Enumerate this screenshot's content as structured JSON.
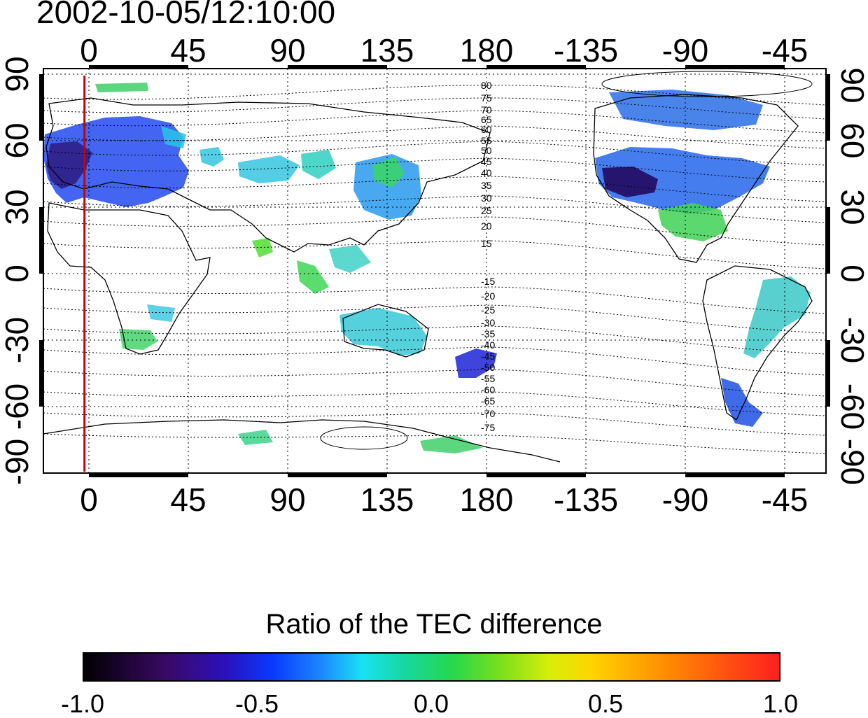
{
  "timestamp": "2002-10-05/12:10:00",
  "map": {
    "top_axis_labels": [
      "0",
      "45",
      "90",
      "135",
      "180",
      "-135",
      "-90",
      "-45"
    ],
    "bottom_axis_labels": [
      "0",
      "45",
      "90",
      "135",
      "180",
      "-135",
      "-90",
      "-45"
    ],
    "left_axis_labels": [
      "90",
      "60",
      "30",
      "0",
      "-30",
      "-60",
      "-90"
    ],
    "right_axis_labels": [
      "90",
      "60",
      "30",
      "0",
      "-30",
      "-60",
      "-90"
    ],
    "north_contour_labels": [
      "80",
      "75",
      "70",
      "65",
      "60",
      "55",
      "50",
      "45",
      "40",
      "35",
      "30",
      "25",
      "20",
      "15"
    ],
    "south_contour_labels": [
      "-15",
      "-20",
      "-25",
      "-30",
      "-35",
      "-40",
      "-45",
      "-50",
      "-55",
      "-60",
      "-65",
      "-70",
      "-75"
    ],
    "reference_line_longitude": -2,
    "reference_line_color": "#cc0000"
  },
  "colorbar": {
    "title": "Ratio of the TEC difference",
    "labels": [
      "-1.0",
      "-0.5",
      "0.0",
      "0.5",
      "1.0"
    ],
    "range": [
      -1.0,
      1.0
    ]
  }
}
